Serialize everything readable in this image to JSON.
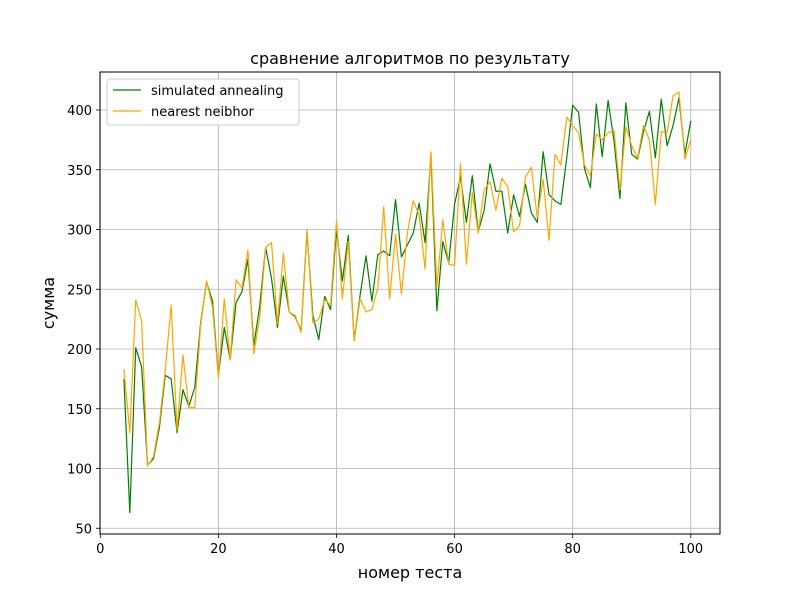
{
  "chart_data": {
    "type": "line",
    "title": "сравнение алгоритмов по результату",
    "xlabel": "номер теста",
    "ylabel": "сумма",
    "xlim": [
      -0.05,
      104.95
    ],
    "ylim": [
      45.2,
      431.8
    ],
    "xticks": [
      0,
      20,
      40,
      60,
      80,
      100
    ],
    "yticks": [
      50,
      100,
      150,
      200,
      250,
      300,
      350,
      400
    ],
    "grid": true,
    "legend_position": "top-left",
    "x": [
      4,
      5,
      6,
      7,
      8,
      9,
      10,
      11,
      12,
      13,
      14,
      15,
      16,
      17,
      18,
      19,
      20,
      21,
      22,
      23,
      24,
      25,
      26,
      27,
      28,
      29,
      30,
      31,
      32,
      33,
      34,
      35,
      36,
      37,
      38,
      39,
      40,
      41,
      42,
      43,
      44,
      45,
      46,
      47,
      48,
      49,
      50,
      51,
      52,
      53,
      54,
      55,
      56,
      57,
      58,
      59,
      60,
      61,
      62,
      63,
      64,
      65,
      66,
      67,
      68,
      69,
      70,
      71,
      72,
      73,
      74,
      75,
      76,
      77,
      78,
      79,
      80,
      81,
      82,
      83,
      84,
      85,
      86,
      87,
      88,
      89,
      90,
      91,
      92,
      93,
      94,
      95,
      96,
      97,
      98,
      99,
      100
    ],
    "series": [
      {
        "name": "simulated annealing",
        "color": "#008000",
        "values": [
          175,
          63,
          201,
          185,
          103,
          108,
          134,
          178,
          175,
          130,
          166,
          152,
          168,
          222,
          256,
          240,
          178,
          218,
          191,
          239,
          248,
          275,
          203,
          236,
          285,
          259,
          218,
          261,
          231,
          227,
          215,
          298,
          228,
          208,
          244,
          233,
          300,
          257,
          295,
          207,
          245,
          278,
          240,
          279,
          282,
          278,
          325,
          277,
          287,
          297,
          322,
          289,
          362,
          232,
          290,
          272,
          321,
          344,
          306,
          345,
          298,
          316,
          355,
          332,
          332,
          297,
          329,
          311,
          338,
          314,
          306,
          365,
          329,
          324,
          321,
          360,
          404,
          398,
          351,
          335,
          405,
          361,
          408,
          374,
          326,
          406,
          363,
          359,
          382,
          399,
          360,
          409,
          370,
          387,
          410,
          363,
          391
        ]
      },
      {
        "name": "nearest neibhor",
        "color": "#FFA500",
        "values": [
          183,
          130,
          241,
          224,
          102,
          110,
          138,
          182,
          237,
          132,
          195,
          151,
          151,
          220,
          257,
          235,
          176,
          242,
          191,
          258,
          251,
          283,
          196,
          226,
          285,
          289,
          221,
          280,
          231,
          228,
          214,
          300,
          222,
          225,
          241,
          237,
          307,
          242,
          290,
          207,
          242,
          231,
          233,
          251,
          319,
          242,
          296,
          246,
          297,
          324,
          312,
          267,
          365,
          252,
          308,
          271,
          270,
          355,
          271,
          331,
          297,
          333,
          340,
          316,
          343,
          336,
          298,
          303,
          344,
          352,
          310,
          342,
          291,
          363,
          354,
          394,
          387,
          381,
          354,
          345,
          380,
          375,
          381,
          383,
          333,
          386,
          370,
          360,
          387,
          375,
          321,
          382,
          381,
          412,
          415,
          359,
          375
        ]
      }
    ]
  }
}
